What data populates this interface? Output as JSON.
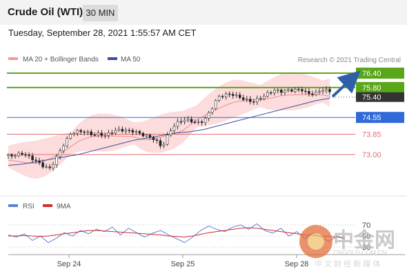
{
  "header": {
    "title": "Crude Oil (WTI)",
    "interval": "30 MIN"
  },
  "timestamp": "Tuesday, September 28, 2021 1:55:57 AM CET",
  "legend": {
    "bollinger": "MA 20 + Bollinger Bands",
    "ma50": "MA 50",
    "rsi": "RSI",
    "rsi_ma": "9MA",
    "copyright": "Research © 2021 Trading Central"
  },
  "watermark": {
    "brand": "中金网",
    "site": "CNGOLD.COM.CN",
    "tagline": "中 文 财 经 新 媒 体"
  },
  "colors": {
    "accent_green": "#5aa61a",
    "blue_level": "#2f6ad8",
    "red_level": "#e07070",
    "ma50": "#3c4c9c",
    "bollinger_band": "#fbd6d6",
    "bollinger_line": "#f08a8a",
    "last_price": "#333333",
    "rsi_line": "#5b7fd4",
    "rsi_ma_line": "#d32b2b"
  },
  "chart_data": [
    {
      "type": "candlestick",
      "title": "Crude Oil (WTI)",
      "interval": "30 MIN",
      "x_ticks": [
        "Sep 24",
        "Sep 25",
        "Sep 28"
      ],
      "ylim": [
        72.25,
        76.7
      ],
      "last_price": 75.4,
      "levels": [
        {
          "value": 76.4,
          "label": "76.40",
          "kind": "resistance"
        },
        {
          "value": 75.8,
          "label": "75.80",
          "kind": "resistance"
        },
        {
          "value": 74.55,
          "label": "74.55",
          "kind": "pivot"
        },
        {
          "value": 73.85,
          "label": "73.85",
          "kind": "support"
        },
        {
          "value": 73.0,
          "label": "73.00",
          "kind": "support"
        }
      ],
      "price_path": [
        72.95,
        72.9,
        72.95,
        72.85,
        72.75,
        72.6,
        72.5,
        72.95,
        73.4,
        73.8,
        73.9,
        73.95,
        73.9,
        73.95,
        73.85,
        73.95,
        73.95,
        73.9,
        73.95,
        73.9,
        73.85,
        73.7,
        73.3,
        73.85,
        74.2,
        74.4,
        74.45,
        74.4,
        74.5,
        74.9,
        75.35,
        75.4,
        75.45,
        75.4,
        75.35,
        75.3,
        75.4,
        75.5,
        75.6,
        75.55,
        75.65,
        75.75,
        75.8,
        75.6,
        75.55,
        75.65,
        75.55
      ],
      "ma50_path": [
        72.55,
        72.6,
        72.7,
        72.8,
        72.9,
        73.0,
        73.15,
        73.3,
        73.45,
        73.6,
        73.7,
        73.8,
        73.9,
        73.95,
        74.05,
        74.2,
        74.35,
        74.5,
        74.65,
        74.8,
        74.95,
        75.1,
        75.25,
        75.35
      ],
      "series": [
        {
          "name": "MA 20 + Bollinger Bands"
        },
        {
          "name": "MA 50"
        }
      ]
    },
    {
      "type": "line",
      "ylim": [
        30,
        75
      ],
      "y_ticks": [
        70,
        50,
        30
      ],
      "rsi_path": [
        52,
        48,
        54,
        42,
        50,
        38,
        46,
        56,
        50,
        60,
        54,
        62,
        58,
        66,
        52,
        64,
        56,
        48,
        55,
        60,
        52,
        45,
        38,
        48,
        60,
        68,
        62,
        58,
        66,
        70,
        62,
        72,
        60,
        55,
        64,
        50,
        58,
        45,
        55,
        48,
        40,
        50,
        44
      ],
      "rsi_ma_path": [
        50,
        50,
        51,
        50,
        49,
        50,
        52,
        54,
        56,
        58,
        60,
        60,
        59,
        58,
        57,
        56,
        55,
        54,
        53,
        52,
        50,
        49,
        48,
        50,
        53,
        56,
        58,
        60,
        62,
        64,
        65,
        64,
        62,
        60,
        58,
        56,
        54,
        52,
        51,
        50,
        49,
        48,
        47
      ],
      "series": [
        {
          "name": "RSI"
        },
        {
          "name": "9MA"
        }
      ]
    }
  ]
}
